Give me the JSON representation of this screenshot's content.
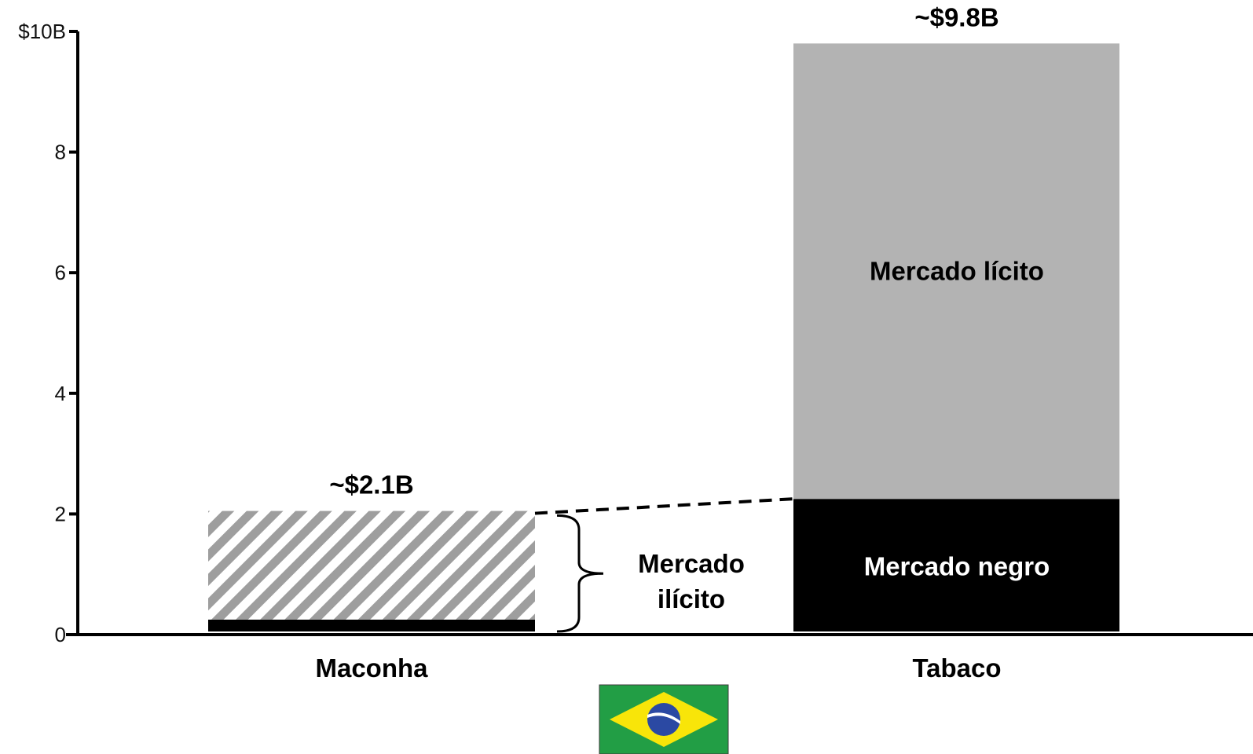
{
  "chart_data": {
    "type": "bar",
    "stacked": true,
    "title": "",
    "xlabel": "",
    "ylabel": "",
    "ylim": [
      0,
      10
    ],
    "yticks": [
      {
        "value": 0,
        "label": "0"
      },
      {
        "value": 2,
        "label": "2"
      },
      {
        "value": 4,
        "label": "4"
      },
      {
        "value": 6,
        "label": "6"
      },
      {
        "value": 8,
        "label": "8"
      },
      {
        "value": 10,
        "label": "$10B"
      }
    ],
    "categories": [
      "Maconha",
      "Tabaco"
    ],
    "bars": [
      {
        "category": "Maconha",
        "total_label": "~$2.1B",
        "segments": [
          {
            "kind": "black",
            "value": 0.25,
            "color": "#000000",
            "label": ""
          },
          {
            "kind": "hatched",
            "value": 1.8,
            "color": "#9e9e9e",
            "label": ""
          }
        ]
      },
      {
        "category": "Tabaco",
        "total_label": "~$9.8B",
        "segments": [
          {
            "kind": "black",
            "value": 2.25,
            "color": "#000000",
            "label": "Mercado negro",
            "label_color": "#ffffff"
          },
          {
            "kind": "solid",
            "value": 7.55,
            "color": "#b3b3b3",
            "label": "Mercado lícito",
            "label_color": "#000000"
          }
        ]
      }
    ],
    "annotation": {
      "text_lines": [
        "Mercado",
        "ilícito"
      ],
      "brace_from": 0,
      "brace_to": 2.0
    },
    "flag": "brazil-flag-icon"
  }
}
